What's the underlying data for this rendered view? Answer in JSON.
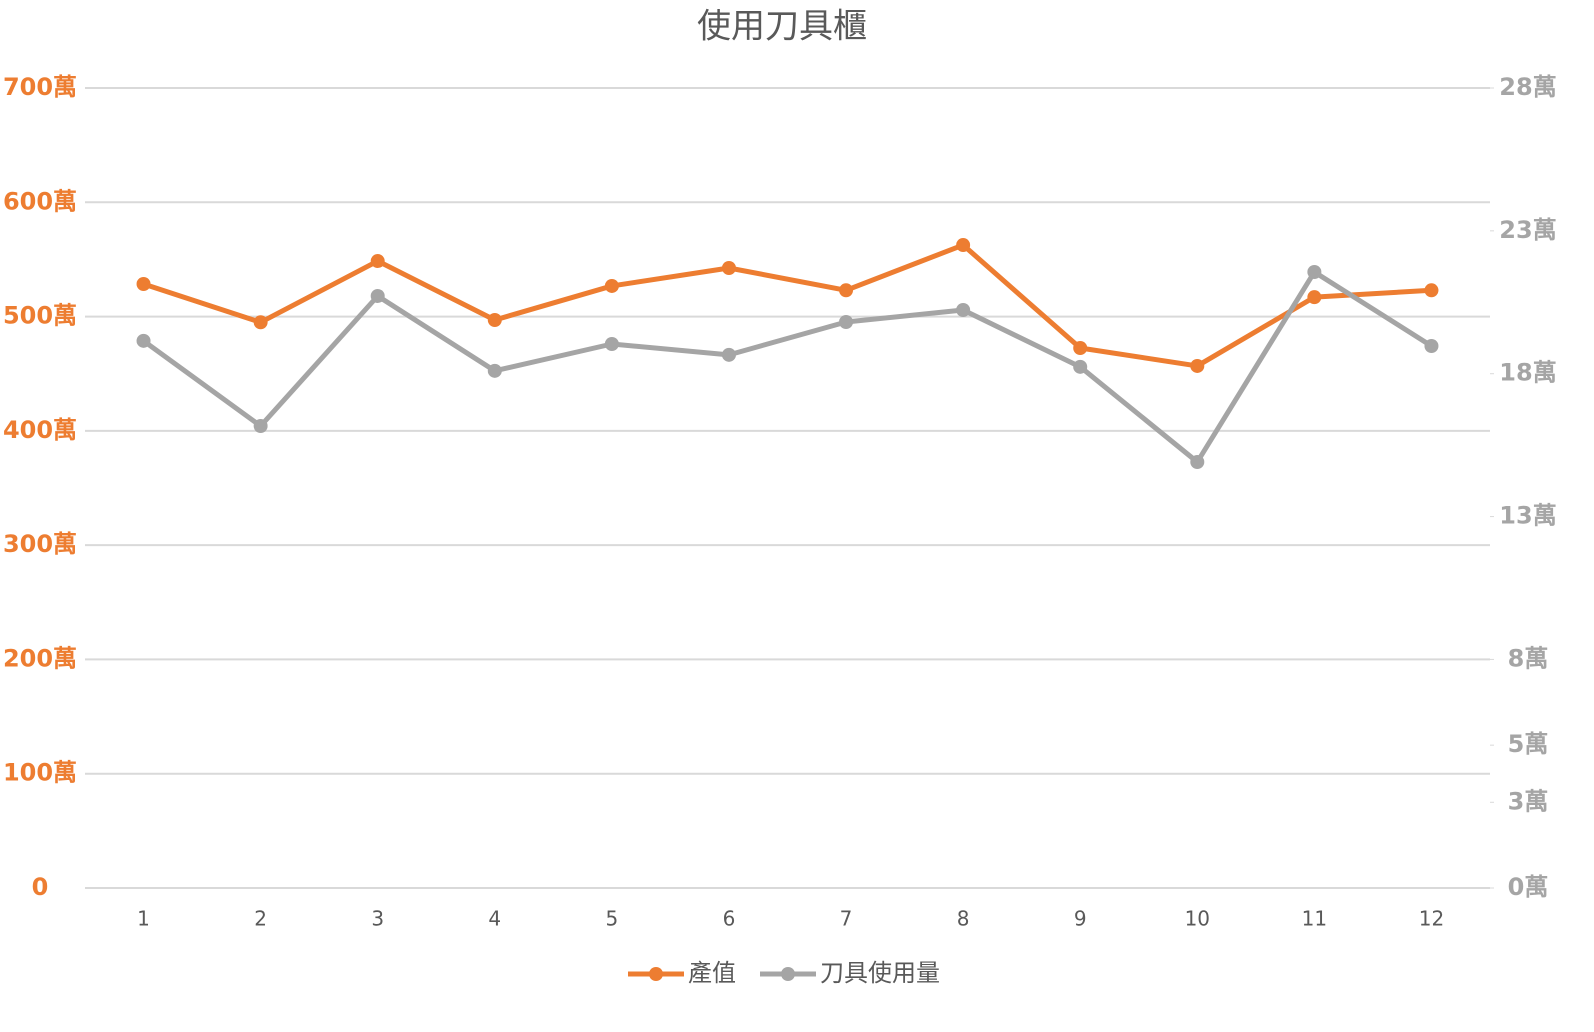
{
  "chart_data": {
    "type": "line",
    "title": "使用刀具櫃",
    "categories": [
      "1",
      "2",
      "3",
      "4",
      "5",
      "6",
      "7",
      "8",
      "9",
      "10",
      "11",
      "12"
    ],
    "series": [
      {
        "name": "產值",
        "color": "#ed7d31",
        "values": [
          528.5,
          495,
          548.6,
          497,
          526.8,
          542.5,
          523,
          562.6,
          472.5,
          456.8,
          517,
          523
        ]
      },
      {
        "name": "刀具使用量",
        "color": "#a5a5a5",
        "axis": "y2",
        "values": [
          19.15,
          16.17,
          20.72,
          18.1,
          19.04,
          18.66,
          19.81,
          20.23,
          18.24,
          14.91,
          21.56,
          18.97
        ]
      }
    ],
    "ylim": [
      0,
      700
    ],
    "yticks": [
      0,
      {
        "value": 100,
        "label": "100萬"
      },
      {
        "value": 200,
        "label": "200萬"
      },
      {
        "value": 300,
        "label": "300萬"
      },
      {
        "value": 400,
        "label": "400萬"
      },
      {
        "value": 500,
        "label": "500萬"
      },
      {
        "value": 600,
        "label": "600萬"
      },
      {
        "value": 700,
        "label": "700萬"
      }
    ],
    "y2lim": [
      0,
      28
    ],
    "y2ticks": [
      {
        "value": 0,
        "label": "0萬"
      },
      {
        "value": 3,
        "label": "3萬"
      },
      {
        "value": 5,
        "label": "5萬"
      },
      {
        "value": 8,
        "label": "8萬"
      },
      {
        "value": 13,
        "label": "13萬"
      },
      {
        "value": 18,
        "label": "18萬"
      },
      {
        "value": 23,
        "label": "23萬"
      },
      {
        "value": 28,
        "label": "28萬"
      }
    ],
    "grid": true,
    "legend": "bottom"
  }
}
